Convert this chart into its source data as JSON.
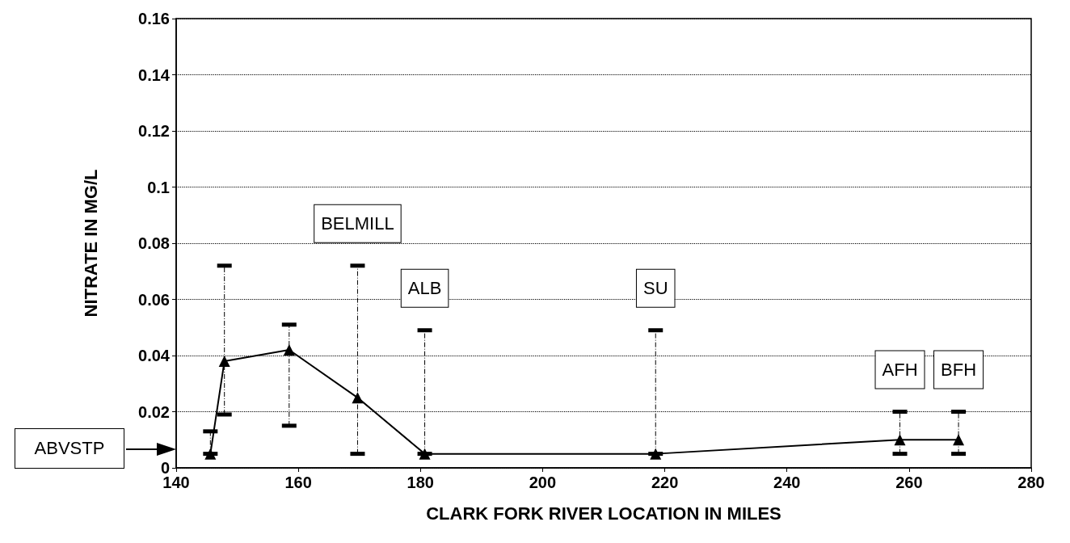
{
  "chart_data": {
    "type": "line",
    "xlabel": "CLARK FORK RIVER LOCATION IN MILES",
    "ylabel": "NITRATE IN MG/L",
    "x": [
      145.6,
      147.9,
      158.5,
      169.7,
      180.7,
      218.5,
      258.5,
      268.1
    ],
    "series": [
      {
        "color": "#000000",
        "values": [
          0.005,
          0.038,
          0.042,
          0.025,
          0.005,
          0.005,
          0.01,
          0.01
        ],
        "errors": [
          [
            0.005,
            0.013
          ],
          [
            0.019,
            0.072
          ],
          [
            0.015,
            0.051
          ],
          [
            0.005,
            0.072
          ],
          [
            0.005,
            0.049
          ],
          [
            0.005,
            0.049
          ],
          [
            0.005,
            0.02
          ],
          [
            0.005,
            0.02
          ]
        ]
      }
    ],
    "xlim": [
      140,
      280
    ],
    "xticks": [
      140,
      160,
      180,
      200,
      220,
      240,
      260,
      280
    ],
    "ylim": [
      0,
      0.16
    ],
    "yticks": [
      0,
      0.02,
      0.04,
      0.06,
      0.08,
      0.1,
      0.12,
      0.14,
      0.16
    ],
    "grid": "y",
    "marker": "triangle",
    "line_style": "solid",
    "annotations": [
      "ABVSTP",
      "BELMILL",
      "ALB",
      "SU",
      "AFH",
      "BFH"
    ]
  }
}
